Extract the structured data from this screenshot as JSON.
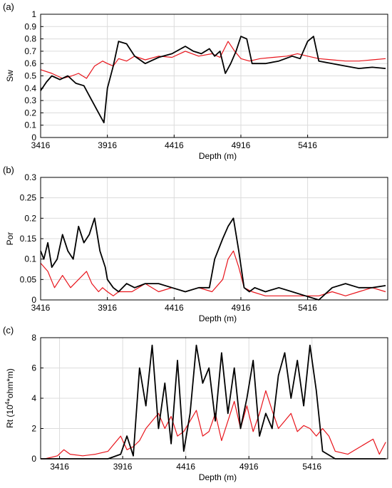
{
  "chart_data": [
    {
      "type": "line",
      "panel_label": "(a)",
      "xlabel": "Depth (m)",
      "ylabel": "Sw",
      "xlim": [
        3416,
        6016
      ],
      "ylim": [
        0,
        1
      ],
      "xticks": [
        3416,
        3916,
        4416,
        4916,
        5416
      ],
      "yticks": [
        0,
        0.1,
        0.2,
        0.3,
        0.4,
        0.5,
        0.6,
        0.7,
        0.8,
        0.9,
        1
      ],
      "grid": true,
      "colors": {
        "red": "#e8141b",
        "black": "#000000"
      },
      "series": [
        {
          "color": "#e8141b",
          "values_x": [
            3416,
            3500,
            3580,
            3650,
            3700,
            3760,
            3820,
            3880,
            3916,
            3960,
            4000,
            4060,
            4120,
            4200,
            4300,
            4400,
            4500,
            4600,
            4700,
            4760,
            4820,
            4870,
            4916,
            4980,
            5060,
            5160,
            5260,
            5340,
            5416,
            5500,
            5600,
            5700,
            5800,
            5900,
            6000
          ],
          "values_y": [
            0.55,
            0.52,
            0.48,
            0.5,
            0.52,
            0.48,
            0.58,
            0.62,
            0.6,
            0.58,
            0.64,
            0.62,
            0.66,
            0.63,
            0.66,
            0.65,
            0.7,
            0.66,
            0.68,
            0.65,
            0.78,
            0.7,
            0.64,
            0.62,
            0.64,
            0.65,
            0.66,
            0.68,
            0.66,
            0.64,
            0.63,
            0.62,
            0.62,
            0.63,
            0.64
          ]
        },
        {
          "color": "#000000",
          "values_x": [
            3416,
            3460,
            3500,
            3560,
            3620,
            3680,
            3740,
            3800,
            3850,
            3890,
            3916,
            3960,
            4000,
            4060,
            4120,
            4200,
            4300,
            4400,
            4500,
            4560,
            4620,
            4680,
            4720,
            4760,
            4800,
            4840,
            4880,
            4916,
            4960,
            5000,
            5100,
            5200,
            5300,
            5360,
            5416,
            5460,
            5500,
            5600,
            5700,
            5800,
            5900,
            6000
          ],
          "values_y": [
            0.38,
            0.45,
            0.5,
            0.47,
            0.5,
            0.44,
            0.42,
            0.3,
            0.2,
            0.12,
            0.4,
            0.58,
            0.78,
            0.76,
            0.66,
            0.6,
            0.65,
            0.68,
            0.74,
            0.7,
            0.68,
            0.72,
            0.66,
            0.7,
            0.52,
            0.6,
            0.7,
            0.82,
            0.8,
            0.6,
            0.6,
            0.62,
            0.66,
            0.64,
            0.78,
            0.82,
            0.62,
            0.6,
            0.58,
            0.56,
            0.57,
            0.56
          ]
        }
      ]
    },
    {
      "type": "line",
      "panel_label": "(b)",
      "xlabel": "Depth (m)",
      "ylabel": "Por",
      "xlim": [
        3416,
        6016
      ],
      "ylim": [
        0,
        0.3
      ],
      "xticks": [
        3416,
        3916,
        4416,
        4916,
        5416
      ],
      "yticks": [
        0,
        0.05,
        0.1,
        0.15,
        0.2,
        0.25,
        0.3
      ],
      "grid": true,
      "colors": {
        "red": "#e8141b",
        "black": "#000000"
      },
      "series": [
        {
          "color": "#e8141b",
          "values_x": [
            3416,
            3470,
            3520,
            3580,
            3640,
            3700,
            3760,
            3800,
            3850,
            3880,
            3916,
            3960,
            4000,
            4100,
            4200,
            4300,
            4400,
            4500,
            4600,
            4700,
            4780,
            4820,
            4860,
            4900,
            4940,
            5000,
            5100,
            5200,
            5300,
            5400,
            5500,
            5600,
            5700,
            5800,
            5900,
            6000
          ],
          "values_y": [
            0.09,
            0.07,
            0.03,
            0.06,
            0.03,
            0.05,
            0.07,
            0.04,
            0.02,
            0.03,
            0.02,
            0.01,
            0.02,
            0.02,
            0.04,
            0.02,
            0.03,
            0.02,
            0.03,
            0.02,
            0.05,
            0.1,
            0.12,
            0.08,
            0.03,
            0.02,
            0.01,
            0.01,
            0.01,
            0.01,
            0.01,
            0.02,
            0.01,
            0.02,
            0.03,
            0.02
          ]
        },
        {
          "color": "#000000",
          "values_x": [
            3416,
            3440,
            3470,
            3500,
            3540,
            3580,
            3620,
            3660,
            3700,
            3740,
            3780,
            3820,
            3860,
            3900,
            3916,
            3960,
            4000,
            4060,
            4120,
            4200,
            4300,
            4400,
            4500,
            4600,
            4680,
            4720,
            4780,
            4820,
            4860,
            4900,
            4940,
            4980,
            5020,
            5100,
            5200,
            5300,
            5400,
            5500,
            5600,
            5700,
            5800,
            5900,
            6000
          ],
          "values_y": [
            0.12,
            0.1,
            0.14,
            0.08,
            0.1,
            0.16,
            0.12,
            0.1,
            0.18,
            0.14,
            0.16,
            0.2,
            0.12,
            0.08,
            0.05,
            0.03,
            0.02,
            0.04,
            0.03,
            0.04,
            0.04,
            0.03,
            0.02,
            0.03,
            0.03,
            0.1,
            0.15,
            0.18,
            0.2,
            0.12,
            0.03,
            0.02,
            0.03,
            0.02,
            0.03,
            0.02,
            0.01,
            0.0,
            0.03,
            0.04,
            0.03,
            0.03,
            0.035
          ]
        }
      ]
    },
    {
      "type": "line",
      "panel_label": "(c)",
      "xlabel": "Depth (m)",
      "ylabel_main": "Rt (10",
      "ylabel_sup": "4",
      "ylabel_rest": "*ohm*m)",
      "xlim": [
        3266,
        6016
      ],
      "ylim": [
        0,
        8
      ],
      "xticks": [
        3416,
        3916,
        4416,
        4916,
        5416
      ],
      "yticks": [
        0,
        2,
        4,
        6,
        8
      ],
      "grid": true,
      "colors": {
        "red": "#e8141b",
        "black": "#000000"
      },
      "series": [
        {
          "color": "#e8141b",
          "values_x": [
            3266,
            3300,
            3350,
            3400,
            3450,
            3500,
            3600,
            3700,
            3800,
            3850,
            3900,
            3950,
            4000,
            4050,
            4100,
            4150,
            4200,
            4250,
            4300,
            4350,
            4400,
            4450,
            4500,
            4550,
            4600,
            4650,
            4700,
            4750,
            4800,
            4850,
            4900,
            4950,
            5000,
            5050,
            5100,
            5150,
            5200,
            5250,
            5300,
            5350,
            5400,
            5450,
            5500,
            5550,
            5600,
            5700,
            5800,
            5900,
            5950,
            6000
          ],
          "values_y": [
            0.0,
            0.0,
            0.1,
            0.2,
            0.6,
            0.3,
            0.2,
            0.3,
            0.5,
            1.0,
            1.5,
            0.6,
            0.8,
            1.2,
            2.0,
            2.5,
            3.0,
            2.0,
            2.8,
            1.5,
            1.8,
            2.5,
            3.2,
            1.5,
            1.8,
            3.0,
            1.2,
            2.5,
            3.8,
            2.0,
            3.5,
            1.8,
            3.0,
            4.5,
            3.2,
            2.0,
            2.5,
            3.0,
            1.8,
            2.2,
            2.0,
            1.5,
            2.0,
            1.5,
            0.5,
            0.3,
            0.8,
            1.3,
            0.3,
            1.1
          ]
        },
        {
          "color": "#000000",
          "values_x": [
            3266,
            3400,
            3600,
            3800,
            3900,
            3950,
            4000,
            4050,
            4100,
            4150,
            4200,
            4250,
            4300,
            4350,
            4400,
            4450,
            4500,
            4550,
            4600,
            4650,
            4700,
            4750,
            4800,
            4850,
            4900,
            4950,
            5000,
            5050,
            5100,
            5150,
            5200,
            5250,
            5300,
            5350,
            5400,
            5450,
            5500,
            5600,
            5800,
            6000
          ],
          "values_y": [
            0.0,
            0.0,
            0.0,
            0.0,
            0.3,
            1.5,
            0.2,
            6.0,
            3.5,
            7.5,
            2.0,
            5.0,
            1.0,
            6.5,
            0.5,
            3.0,
            7.5,
            5.0,
            6.0,
            2.5,
            7.0,
            3.0,
            6.0,
            2.0,
            4.0,
            6.5,
            1.5,
            3.0,
            2.0,
            5.5,
            7.0,
            4.0,
            6.5,
            3.5,
            7.5,
            4.5,
            0.5,
            0.0,
            0.0,
            0.0
          ]
        }
      ]
    }
  ]
}
